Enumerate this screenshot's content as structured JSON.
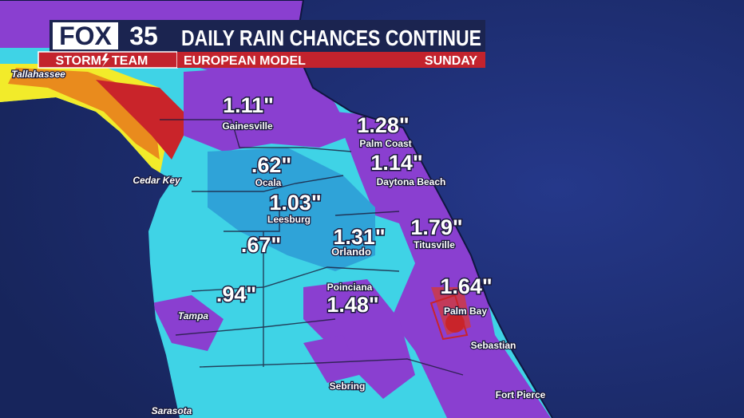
{
  "header": {
    "logo": {
      "network": "FOX",
      "channel": "35",
      "team_left": "STORM",
      "team_right": "TEAM"
    },
    "title": "DAILY RAIN CHANCES CONTINUE",
    "subtitle": "EUROPEAN MODEL",
    "day": "SUNDAY"
  },
  "map": {
    "cities": [
      "Tallahassee",
      "Gainesville",
      "Palm Coast",
      "Cedar Key",
      "Ocala",
      "Daytona Beach",
      "Leesburg",
      "Titusville",
      "Orlando",
      "Poinciana",
      "Palm Bay",
      "Tampa",
      "Sebastian",
      "Sebring",
      "Fort Pierce",
      "Sarasota"
    ],
    "rain_totals": [
      "1.11\"",
      "1.28\"",
      ".62\"",
      "1.14\"",
      "1.03\"",
      "1.79\"",
      ".67\"",
      "1.31\"",
      ".94\"",
      "1.64\"",
      "1.48\""
    ]
  }
}
